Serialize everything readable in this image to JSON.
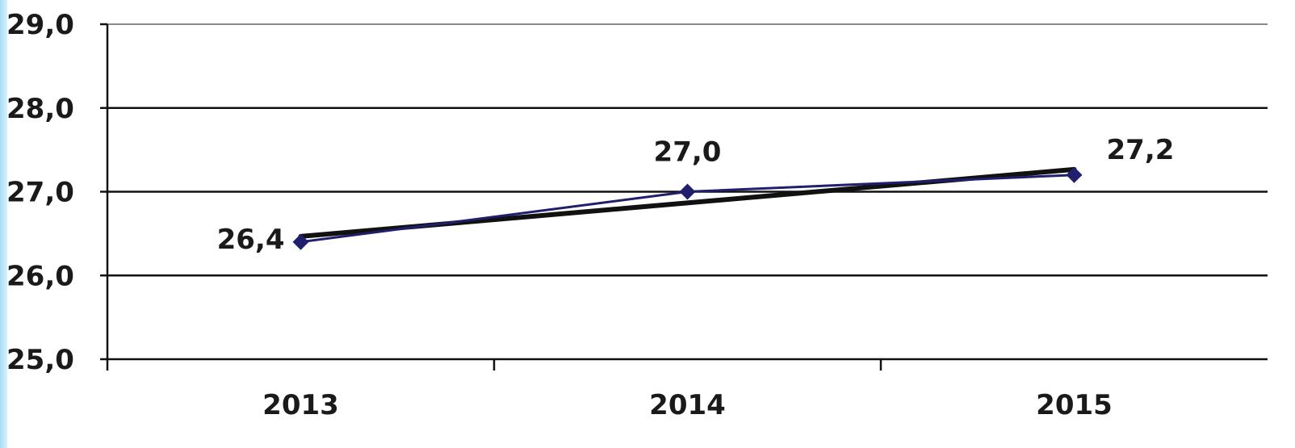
{
  "chart_data": {
    "type": "line",
    "categories": [
      "2013",
      "2014",
      "2015"
    ],
    "series": [
      {
        "values": [
          26.4,
          27.0,
          27.2
        ],
        "color": "#1f1f6e",
        "marker": "diamond"
      }
    ],
    "trendline": {
      "type": "linear",
      "color": "#111111"
    },
    "data_labels": [
      "26,4",
      "27,0",
      "27,2"
    ],
    "ylim": [
      25.0,
      29.0
    ],
    "y_ticks": [
      25.0,
      26.0,
      27.0,
      28.0,
      29.0
    ],
    "y_tick_labels": [
      "25,0",
      "26,0",
      "27,0",
      "28,0",
      "29,0"
    ],
    "grid": true,
    "title": "",
    "xlabel": "",
    "ylabel": ""
  }
}
